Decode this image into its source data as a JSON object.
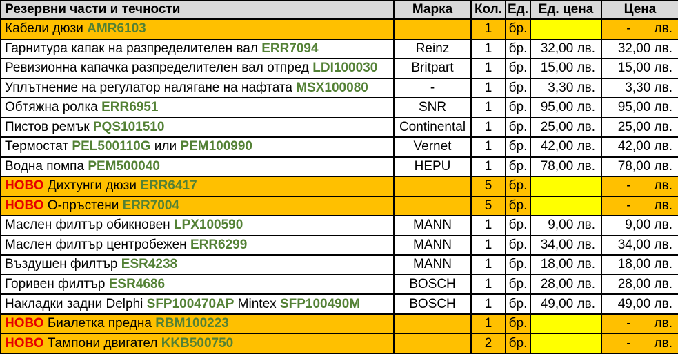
{
  "colors": {
    "header_bg": "#D9D9D9",
    "highlight_bg": "#FFC000",
    "missing_price_bg": "#FFFF00",
    "part_code_green": "#538135",
    "new_label_red": "#E60000",
    "border": "#000000"
  },
  "table": {
    "columns": [
      {
        "key": "name",
        "label": "Резервни части и течности"
      },
      {
        "key": "brand",
        "label": "Марка"
      },
      {
        "key": "qty",
        "label": "Кол."
      },
      {
        "key": "unit",
        "label": "Ед."
      },
      {
        "key": "unit_price",
        "label": "Ед. цена"
      },
      {
        "key": "price",
        "label": "Цена"
      }
    ],
    "currency": "лв.",
    "empty_price_dash": "-",
    "rows": [
      {
        "segments": [
          {
            "text": "Кабели дюзи ",
            "style": "plain"
          },
          {
            "text": "AMR6103",
            "style": "code"
          }
        ],
        "brand": "",
        "qty": "1",
        "unit": "бр.",
        "unit_price": "",
        "price": "",
        "highlighted": true
      },
      {
        "segments": [
          {
            "text": "Гарнитура капак на разпределителен вал ",
            "style": "plain"
          },
          {
            "text": "ERR7094",
            "style": "code"
          }
        ],
        "brand": "Reinz",
        "qty": "1",
        "unit": "бр.",
        "unit_price": "32,00 лв.",
        "price": "32,00 лв.",
        "highlighted": false
      },
      {
        "segments": [
          {
            "text": "Ревизионна капачка разпределителен вал отпред ",
            "style": "plain"
          },
          {
            "text": "LDI100030",
            "style": "code"
          }
        ],
        "brand": "Britpart",
        "qty": "1",
        "unit": "бр.",
        "unit_price": "15,00 лв.",
        "price": "15,00 лв.",
        "highlighted": false
      },
      {
        "segments": [
          {
            "text": "Уплътнение на регулатор налягане на нафтата ",
            "style": "plain"
          },
          {
            "text": "MSX100080",
            "style": "code"
          }
        ],
        "brand": "-",
        "qty": "1",
        "unit": "бр.",
        "unit_price": "3,30 лв.",
        "price": "3,30 лв.",
        "highlighted": false
      },
      {
        "segments": [
          {
            "text": "Обтяжна ролка ",
            "style": "plain"
          },
          {
            "text": "ERR6951",
            "style": "code"
          }
        ],
        "brand": "SNR",
        "qty": "1",
        "unit": "бр.",
        "unit_price": "95,00 лв.",
        "price": "95,00 лв.",
        "highlighted": false
      },
      {
        "segments": [
          {
            "text": "Пистов ремък ",
            "style": "plain"
          },
          {
            "text": "PQS101510",
            "style": "code"
          }
        ],
        "brand": "Continental",
        "qty": "1",
        "unit": "бр.",
        "unit_price": "25,00 лв.",
        "price": "25,00 лв.",
        "highlighted": false
      },
      {
        "segments": [
          {
            "text": "Термостат ",
            "style": "plain"
          },
          {
            "text": "PEL500110G",
            "style": "code"
          },
          {
            "text": " или ",
            "style": "plain"
          },
          {
            "text": "PEM100990",
            "style": "code"
          }
        ],
        "brand": "Vernet",
        "qty": "1",
        "unit": "бр.",
        "unit_price": "42,00 лв.",
        "price": "42,00 лв.",
        "highlighted": false
      },
      {
        "segments": [
          {
            "text": "Водна помпа ",
            "style": "plain"
          },
          {
            "text": "PEM500040",
            "style": "code"
          }
        ],
        "brand": "HEPU",
        "qty": "1",
        "unit": "бр.",
        "unit_price": "78,00 лв.",
        "price": "78,00 лв.",
        "highlighted": false
      },
      {
        "segments": [
          {
            "text": "НОВО ",
            "style": "new"
          },
          {
            "text": "Дихтунги дюзи ",
            "style": "plain"
          },
          {
            "text": "ERR6417",
            "style": "code"
          }
        ],
        "brand": "",
        "qty": "5",
        "unit": "бр.",
        "unit_price": "",
        "price": "",
        "highlighted": true
      },
      {
        "segments": [
          {
            "text": "НОВО ",
            "style": "new"
          },
          {
            "text": "О-пръстени ",
            "style": "plain"
          },
          {
            "text": "ERR7004",
            "style": "code"
          }
        ],
        "brand": "",
        "qty": "5",
        "unit": "бр.",
        "unit_price": "",
        "price": "",
        "highlighted": true
      },
      {
        "segments": [
          {
            "text": "Маслен филтър обикновен ",
            "style": "plain"
          },
          {
            "text": "LPX100590",
            "style": "code"
          }
        ],
        "brand": "MANN",
        "qty": "1",
        "unit": "бр.",
        "unit_price": "9,00 лв.",
        "price": "9,00 лв.",
        "highlighted": false
      },
      {
        "segments": [
          {
            "text": "Маслен филтър центробежен ",
            "style": "plain"
          },
          {
            "text": "ERR6299",
            "style": "code"
          }
        ],
        "brand": "MANN",
        "qty": "1",
        "unit": "бр.",
        "unit_price": "34,00 лв.",
        "price": "34,00 лв.",
        "highlighted": false
      },
      {
        "segments": [
          {
            "text": "Въздушен филтър ",
            "style": "plain"
          },
          {
            "text": "ESR4238",
            "style": "code"
          }
        ],
        "brand": "MANN",
        "qty": "1",
        "unit": "бр.",
        "unit_price": "18,00 лв.",
        "price": "18,00 лв.",
        "highlighted": false
      },
      {
        "segments": [
          {
            "text": "Горивен филтър ",
            "style": "plain"
          },
          {
            "text": "ESR4686",
            "style": "code"
          }
        ],
        "brand": "BOSCH",
        "qty": "1",
        "unit": "бр.",
        "unit_price": "28,00 лв.",
        "price": "28,00 лв.",
        "highlighted": false
      },
      {
        "segments": [
          {
            "text": "Накладки задни Delphi ",
            "style": "plain"
          },
          {
            "text": "SFP100470AP",
            "style": "code"
          },
          {
            "text": " Mintex ",
            "style": "plain"
          },
          {
            "text": "SFP100490M",
            "style": "code"
          }
        ],
        "brand": "BOSCH",
        "qty": "1",
        "unit": "бр.",
        "unit_price": "49,00 лв.",
        "price": "49,00 лв.",
        "highlighted": false
      },
      {
        "segments": [
          {
            "text": "НОВО ",
            "style": "new"
          },
          {
            "text": "Биалетка предна ",
            "style": "plain"
          },
          {
            "text": "RBM100223",
            "style": "code"
          }
        ],
        "brand": "",
        "qty": "1",
        "unit": "бр.",
        "unit_price": "",
        "price": "",
        "highlighted": true
      },
      {
        "segments": [
          {
            "text": "НОВО ",
            "style": "new"
          },
          {
            "text": "Тампони двигател ",
            "style": "plain"
          },
          {
            "text": "KKB500750",
            "style": "code"
          }
        ],
        "brand": "",
        "qty": "2",
        "unit": "бр.",
        "unit_price": "",
        "price": "",
        "highlighted": true
      }
    ]
  }
}
